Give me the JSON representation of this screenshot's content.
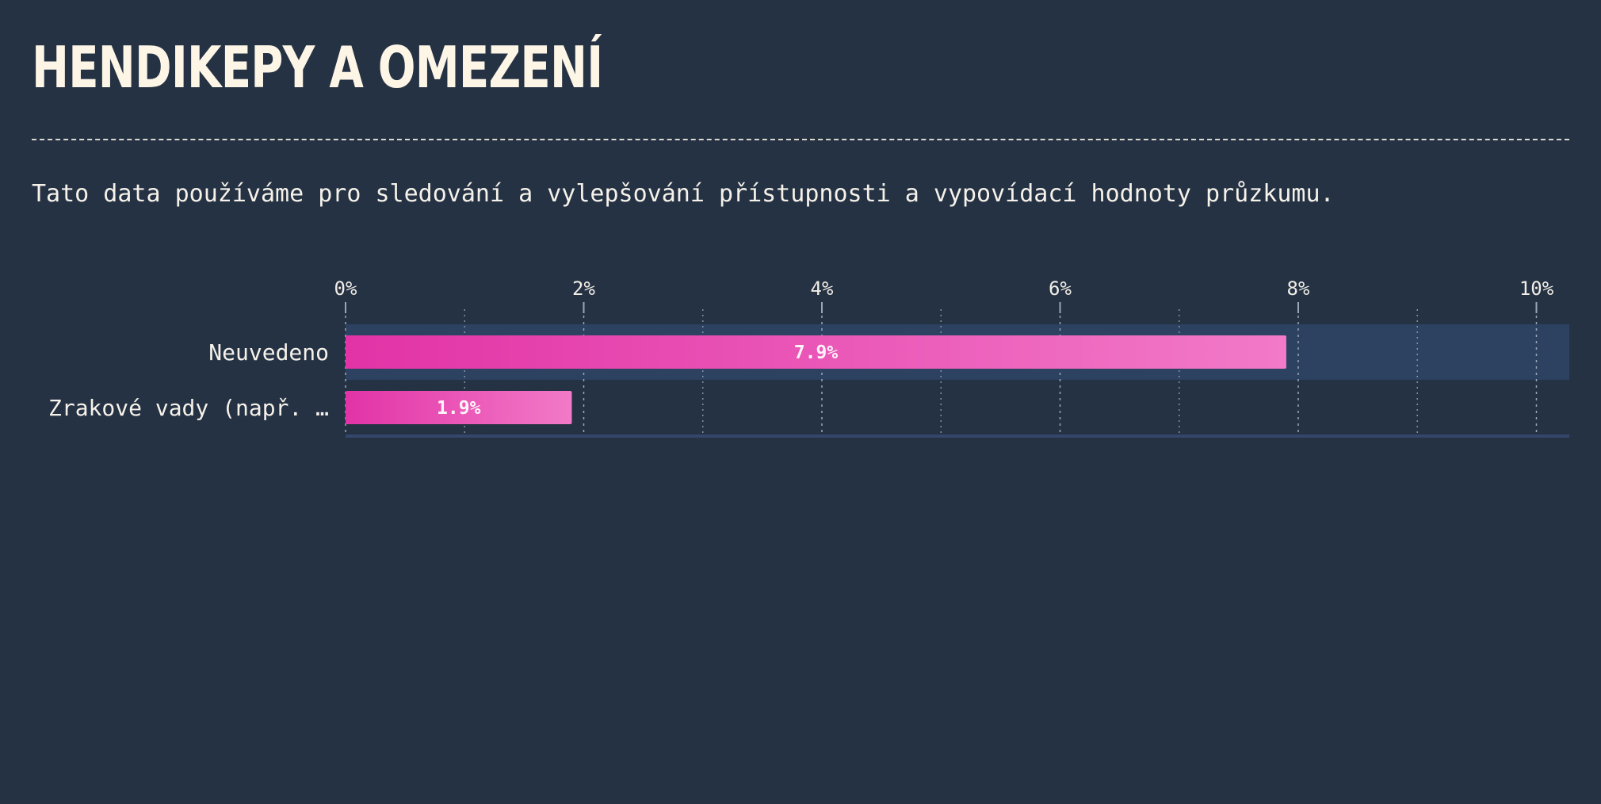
{
  "page": {
    "title": "HENDIKEPY A OMEZENÍ",
    "subtitle": "Tato data používáme pro sledování a vylepšování přístupnosti a vypovídací hodnoty průzkumu."
  },
  "colors": {
    "background": "#253244",
    "bar_gradient_start": "#e233a6",
    "bar_gradient_end": "#f27ac8",
    "highlight_row": "#2d4260",
    "text": "#f6f2ea",
    "title": "#fdf5e6"
  },
  "chart_data": {
    "type": "bar",
    "orientation": "horizontal",
    "categories": [
      "Neuvedeno",
      "Zrakové vady (např. …"
    ],
    "values": [
      7.9,
      1.9
    ],
    "value_labels": [
      "7.9%",
      "1.9%"
    ],
    "xlim": [
      0,
      10.3
    ],
    "x_ticks": [
      0,
      2,
      4,
      6,
      8,
      10
    ],
    "x_tick_labels": [
      "0%",
      "2%",
      "4%",
      "6%",
      "8%",
      "10%"
    ],
    "minor_grid": [
      1,
      3,
      5,
      7,
      9
    ],
    "axis_position": "top",
    "grid": true,
    "highlighted_category": "Neuvedeno"
  }
}
